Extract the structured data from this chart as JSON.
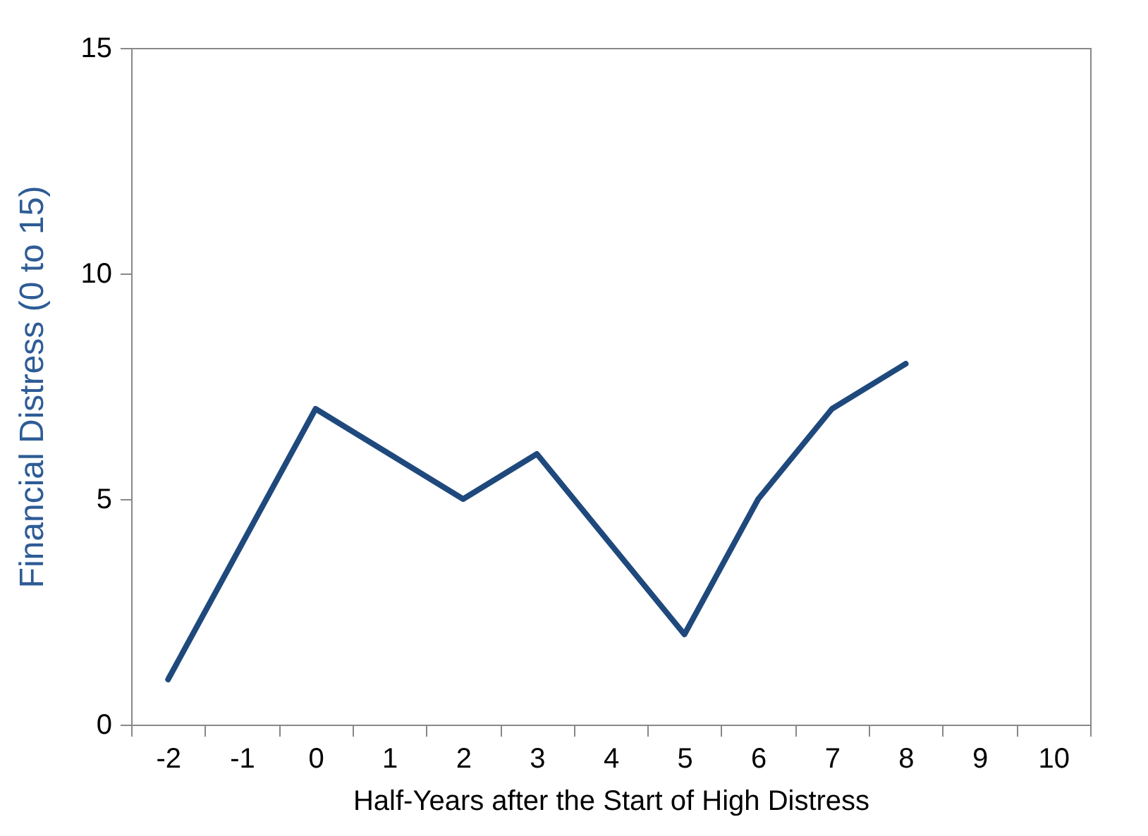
{
  "chart_data": {
    "type": "line",
    "xlabel": "Half-Years after the Start of High Distress",
    "ylabel": "Financial Distress (0 to 15)",
    "categories": [
      "-2",
      "-1",
      "0",
      "1",
      "2",
      "3",
      "4",
      "5",
      "6",
      "7",
      "8",
      "9",
      "10"
    ],
    "series": [
      {
        "color": "#1f497d",
        "values": [
          1,
          4,
          7,
          6,
          5,
          6,
          4,
          2,
          5,
          7,
          8,
          null,
          null
        ]
      }
    ],
    "ylim": [
      0,
      15
    ],
    "yticks": [
      0,
      5,
      10,
      15
    ],
    "grid": false,
    "marker": "none",
    "line_style": "solid"
  }
}
